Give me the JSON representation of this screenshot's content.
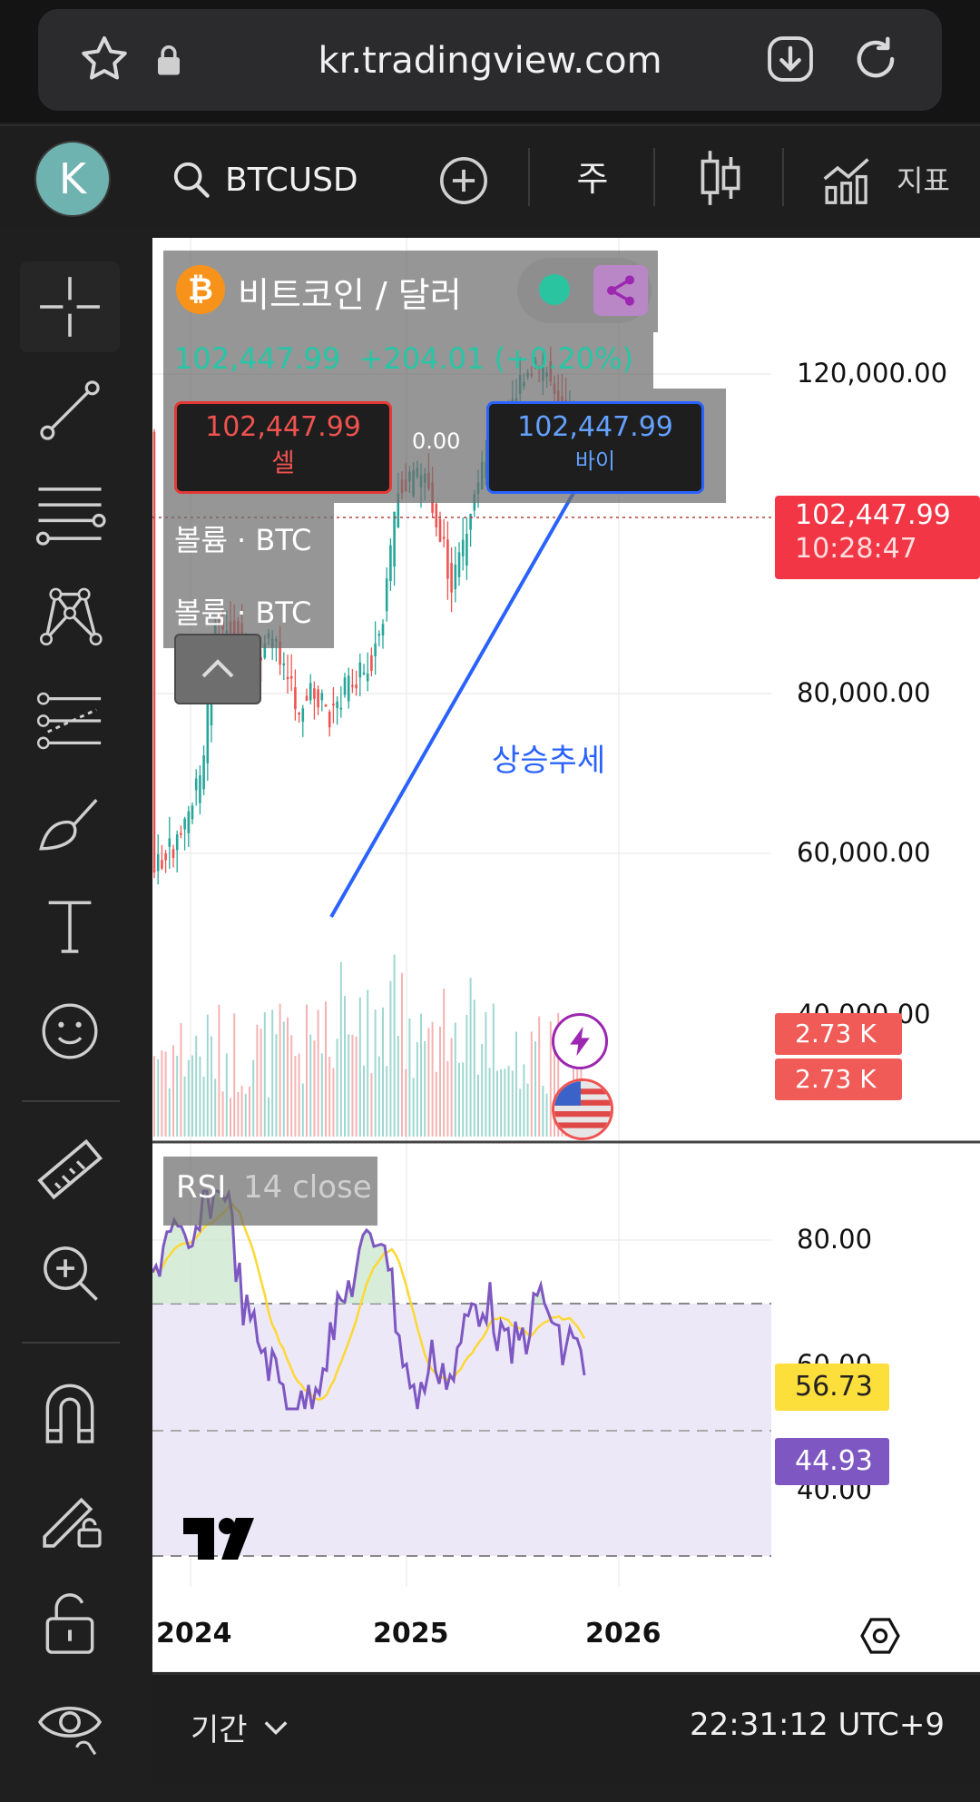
{
  "browser": {
    "url": "kr.tradingview.com"
  },
  "toolbar": {
    "avatar_letter": "K",
    "symbol": "BTCUSD",
    "interval": "주",
    "indicators_label": "지표"
  },
  "legend": {
    "symbol_name": "비트코인 / 달러",
    "price_line": "102,447.99  +204.01 (+0.20%)",
    "sell_price": "102,447.99",
    "sell_label": "셀",
    "spread": "0.00",
    "buy_price": "102,447.99",
    "buy_label": "바이",
    "volume_1": "볼륨 · BTC",
    "volume_2": "볼륨 · BTC"
  },
  "price_axis": {
    "ticks": [
      "120,000.00",
      "80,000.00",
      "60,000.00",
      "40,000.00"
    ],
    "current_price": "102,447.99",
    "countdown": "10:28:47",
    "volume_badge_1": "2.73 K",
    "volume_badge_2": "2.73 K"
  },
  "annotation": {
    "trend_text": "상승추세"
  },
  "rsi": {
    "title": "RSI",
    "params": "14 close",
    "ticks": [
      "80.00",
      "60.00",
      "40.00"
    ],
    "ma_value": "56.73",
    "rsi_value": "44.93"
  },
  "time_axis": {
    "labels": [
      "2024",
      "2025",
      "2026"
    ]
  },
  "bottom": {
    "range_label": "기간",
    "clock": "22:31:12 UTC+9"
  },
  "colors": {
    "up": "#26a69a",
    "down": "#ef5350",
    "trendline": "#2962ff",
    "rsi_line": "#7e57c2",
    "rsi_ma": "#fdd835",
    "current_price_badge": "#f23645"
  }
}
